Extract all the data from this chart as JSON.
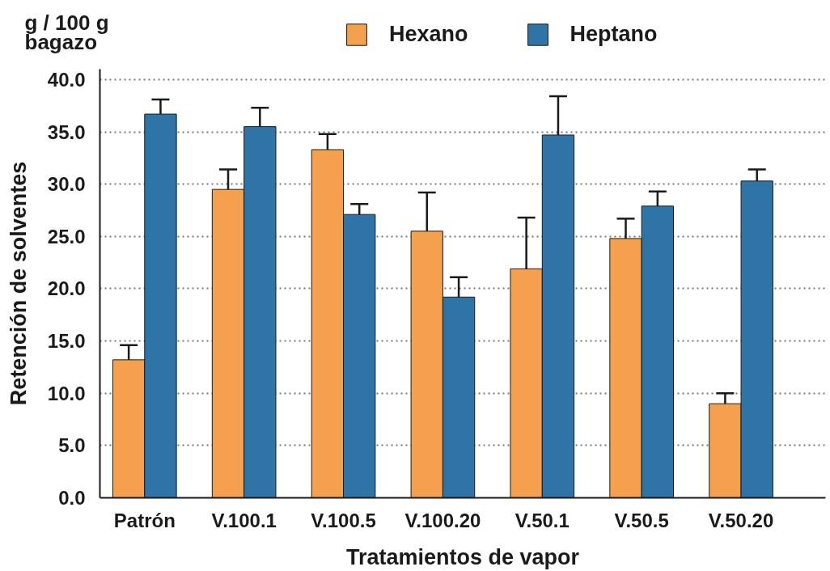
{
  "chart_data": {
    "type": "bar",
    "xlabel": "Tratamientos de vapor",
    "ylabel": "Retención de solventes",
    "annotations": [
      "g / 100 g bagazo"
    ],
    "categories": [
      "Patrón",
      "V.100.1",
      "V.100.5",
      "V.100.20",
      "V.50.1",
      "V.50.5",
      "V.50.20"
    ],
    "series": [
      {
        "name": "Hexano",
        "color": "#f4a04e",
        "values": [
          13.2,
          29.5,
          33.3,
          25.5,
          21.9,
          24.8,
          9.0
        ],
        "errors": [
          1.4,
          1.9,
          1.5,
          3.7,
          4.9,
          1.9,
          1.0
        ]
      },
      {
        "name": "Heptano",
        "color": "#2f74a6",
        "values": [
          36.7,
          35.5,
          27.1,
          19.2,
          34.7,
          27.9,
          30.3
        ],
        "errors": [
          1.4,
          1.8,
          1.0,
          1.9,
          3.7,
          1.4,
          1.1
        ]
      }
    ],
    "ylim": [
      0,
      41
    ],
    "yticks": [
      {
        "value": 0,
        "label": "0.0"
      },
      {
        "value": 5,
        "label": "5.0"
      },
      {
        "value": 10,
        "label": "10.0"
      },
      {
        "value": 15,
        "label": "15.0"
      },
      {
        "value": 20,
        "label": "20.0"
      },
      {
        "value": 25,
        "label": "25.0"
      },
      {
        "value": 30,
        "label": "30.0"
      },
      {
        "value": 35,
        "label": "35.0"
      },
      {
        "value": 40,
        "label": "40.0"
      }
    ],
    "grid": "y",
    "legend": "top"
  }
}
